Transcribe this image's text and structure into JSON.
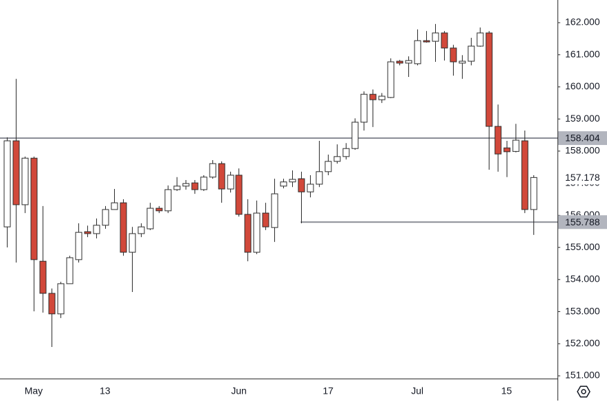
{
  "chart_data": {
    "type": "candlestick",
    "x": [
      null,
      null,
      null,
      "May",
      null,
      null,
      null,
      null,
      null,
      null,
      null,
      "13",
      null,
      null,
      null,
      null,
      null,
      null,
      null,
      null,
      null,
      null,
      null,
      null,
      null,
      null,
      "Jun",
      null,
      null,
      null,
      null,
      null,
      null,
      null,
      null,
      null,
      "17",
      null,
      null,
      null,
      null,
      null,
      null,
      null,
      null,
      null,
      "Jul",
      null,
      null,
      null,
      null,
      null,
      null,
      null,
      null,
      null,
      "15",
      null,
      null,
      null
    ],
    "open": [
      155.64,
      158.32,
      156.33,
      157.78,
      154.57,
      153.57,
      152.93,
      153.87,
      154.62,
      155.49,
      155.43,
      155.69,
      156.18,
      156.39,
      154.85,
      155.43,
      155.58,
      156.22,
      156.14,
      156.8,
      156.91,
      157.01,
      156.8,
      157.19,
      157.61,
      156.82,
      157.25,
      156.03,
      154.85,
      156.07,
      155.62,
      156.91,
      157.04,
      157.14,
      156.73,
      156.97,
      157.36,
      157.68,
      157.83,
      158.08,
      158.9,
      159.77,
      159.6,
      159.67,
      160.8,
      160.74,
      160.72,
      161.44,
      161.42,
      161.68,
      161.21,
      160.74,
      160.8,
      161.27,
      161.68,
      158.77,
      158.1,
      157.99,
      158.32,
      156.18
    ],
    "high": [
      158.43,
      160.25,
      157.83,
      157.83,
      156.29,
      153.72,
      153.93,
      154.74,
      155.75,
      155.68,
      155.9,
      156.29,
      156.82,
      156.5,
      155.64,
      155.75,
      156.39,
      156.29,
      156.93,
      157.19,
      157.1,
      157.1,
      157.25,
      157.72,
      157.68,
      157.36,
      157.46,
      156.5,
      156.46,
      156.39,
      157.14,
      157.14,
      157.4,
      157.36,
      157.25,
      158.32,
      157.89,
      158.21,
      158.25,
      159.02,
      159.86,
      159.92,
      159.81,
      160.89,
      160.84,
      160.95,
      161.79,
      161.74,
      161.96,
      161.74,
      161.31,
      160.99,
      161.53,
      161.85,
      161.74,
      159.45,
      158.32,
      158.85,
      158.64,
      157.25
    ],
    "low": [
      155.0,
      154.53,
      156.07,
      153.01,
      152.97,
      151.9,
      152.8,
      153.87,
      154.53,
      155.32,
      155.28,
      155.58,
      156.18,
      154.74,
      153.61,
      155.32,
      155.54,
      156.07,
      156.07,
      156.76,
      156.8,
      156.67,
      156.76,
      157.14,
      156.39,
      156.71,
      155.96,
      154.57,
      154.79,
      155.54,
      155.17,
      156.84,
      156.88,
      155.75,
      156.56,
      156.88,
      157.25,
      157.61,
      157.74,
      158.04,
      158.64,
      158.75,
      159.5,
      159.65,
      160.67,
      160.31,
      160.67,
      161.38,
      160.78,
      160.82,
      160.35,
      160.25,
      160.67,
      161.25,
      157.42,
      157.36,
      157.19,
      157.96,
      156.07,
      155.39
    ],
    "close": [
      158.32,
      156.33,
      157.78,
      154.62,
      153.57,
      152.93,
      153.87,
      154.68,
      155.47,
      155.43,
      155.69,
      156.18,
      156.39,
      154.85,
      155.43,
      155.64,
      156.22,
      156.14,
      156.8,
      156.91,
      156.99,
      156.8,
      157.19,
      157.61,
      156.82,
      157.25,
      156.03,
      154.85,
      156.07,
      155.64,
      156.67,
      157.04,
      157.12,
      156.73,
      156.97,
      157.36,
      157.68,
      157.83,
      158.08,
      158.9,
      159.77,
      159.6,
      159.71,
      160.78,
      160.74,
      160.82,
      161.44,
      161.4,
      161.68,
      161.21,
      160.78,
      160.8,
      161.27,
      161.68,
      158.77,
      157.91,
      157.98,
      158.34,
      156.18,
      157.178
    ],
    "up_color": "#ffffff",
    "down_color": "#d1483a",
    "outline_color": "#2b2b2b",
    "ylim": [
      150.915,
      162.706
    ],
    "yticks": [
      {
        "value": 151,
        "label": "151.000"
      },
      {
        "value": 152,
        "label": "152.000"
      },
      {
        "value": 153,
        "label": "153.000"
      },
      {
        "value": 154,
        "label": "154.000"
      },
      {
        "value": 155,
        "label": "155.000"
      },
      {
        "value": 156,
        "label": "156.000"
      },
      {
        "value": 157,
        "label": "157.000"
      },
      {
        "value": 158,
        "label": "158.000"
      },
      {
        "value": 159,
        "label": "159.000"
      },
      {
        "value": 160,
        "label": "160.000"
      },
      {
        "value": 161,
        "label": "161.000"
      },
      {
        "value": 162,
        "label": "162.000"
      }
    ],
    "hlines": [
      158.404,
      155.788
    ],
    "hline_color": "#8a8d96"
  }
}
